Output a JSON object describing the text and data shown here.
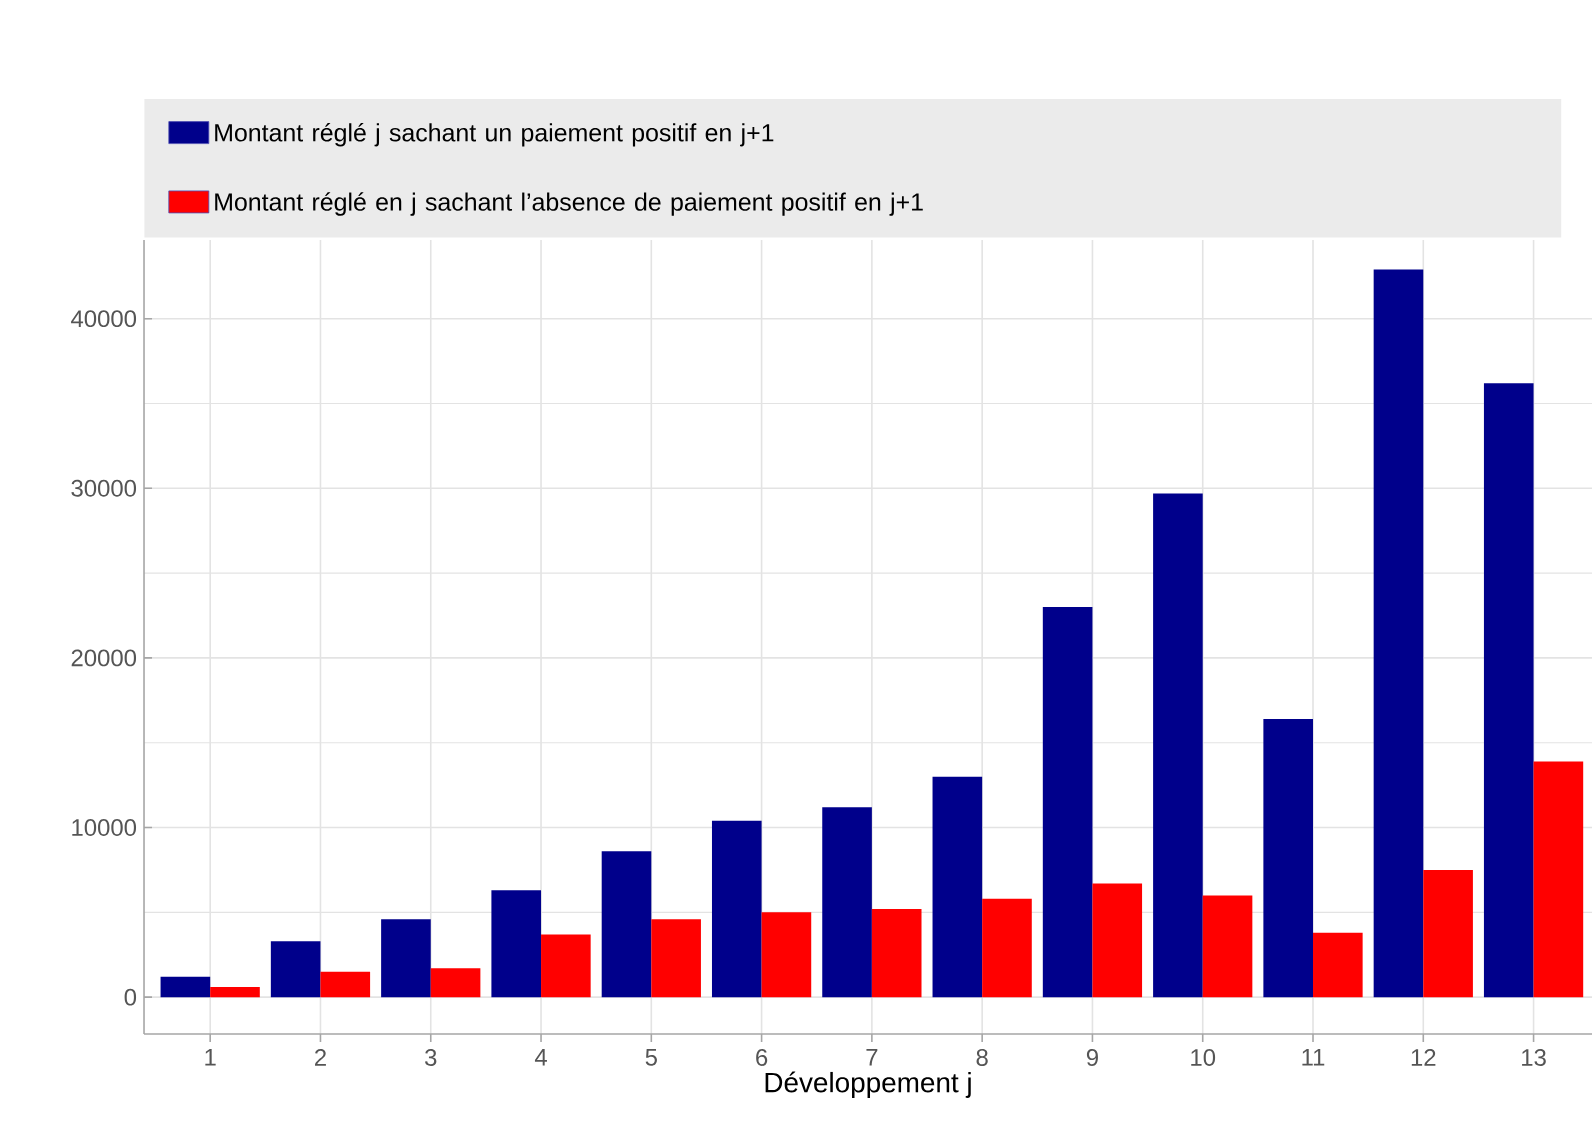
{
  "chart_data": {
    "type": "bar",
    "xlabel": "Développement j",
    "categories": [
      "1",
      "2",
      "3",
      "4",
      "5",
      "6",
      "7",
      "8",
      "9",
      "10",
      "11",
      "12",
      "13"
    ],
    "series": [
      {
        "name": "Montant réglé j sachant un paiement positif en j+1",
        "color": "#00008b",
        "values": [
          1200,
          3300,
          4600,
          6300,
          8600,
          10400,
          11200,
          13000,
          23000,
          29700,
          16400,
          42900,
          36200
        ]
      },
      {
        "name": "Montant réglé en j sachant l’absence de paiement positif en j+1",
        "color": "#ff0000",
        "values": [
          600,
          1500,
          1700,
          3700,
          4600,
          5000,
          5200,
          5800,
          6700,
          6000,
          3800,
          7500,
          13900
        ]
      }
    ],
    "ylim": [
      -2170,
      44640
    ],
    "yticks": [
      0,
      10000,
      20000,
      30000,
      40000
    ],
    "grid": true,
    "legend": "top"
  }
}
